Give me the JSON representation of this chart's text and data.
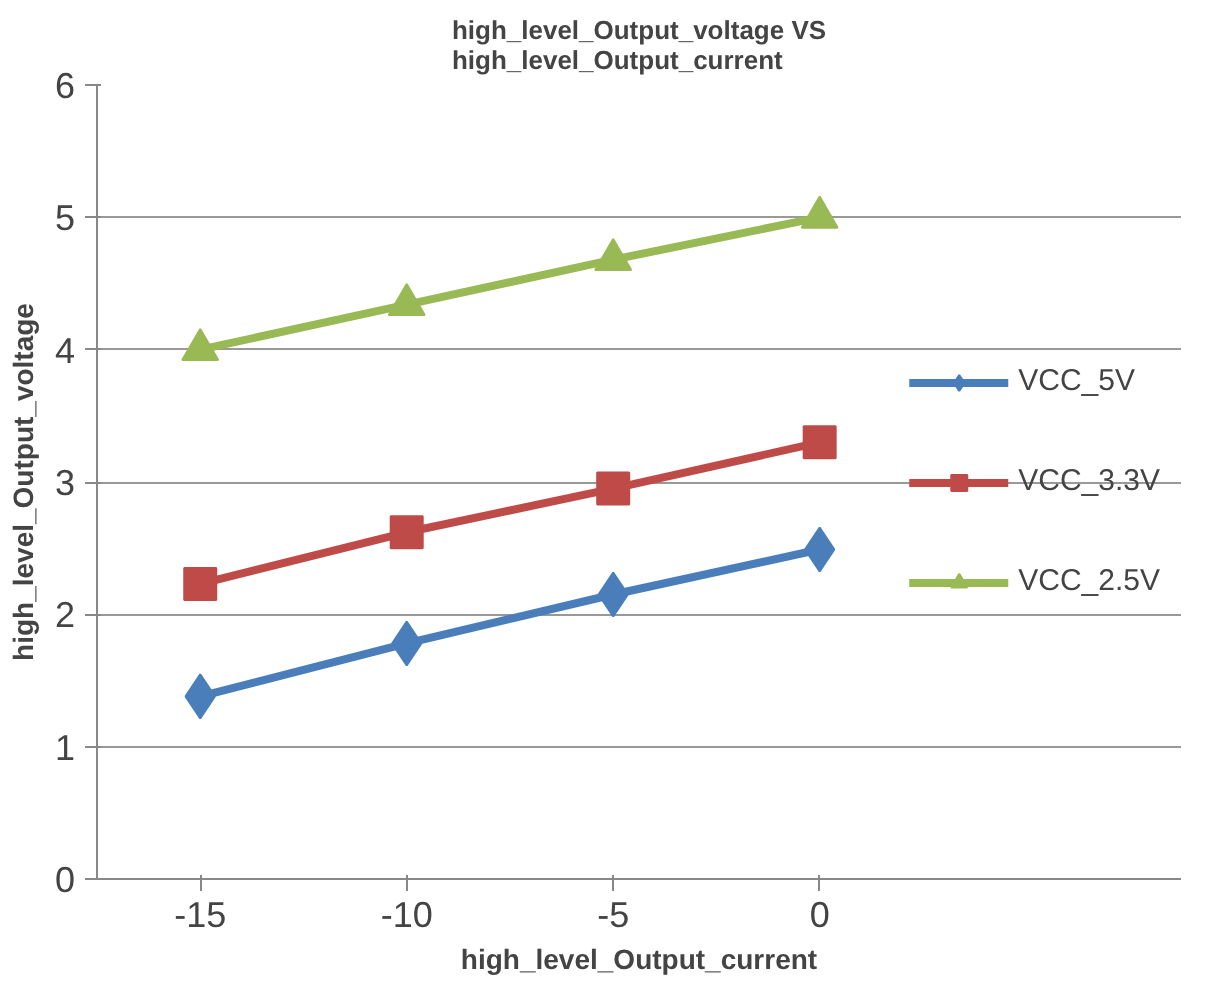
{
  "chart_data": {
    "type": "line",
    "title": "high_level_Output_voltage VS\nhigh_level_Output_current",
    "xlabel": "high_level_Output_current",
    "ylabel": "high_level_Output_voltage",
    "categories": [
      "-15",
      "-10",
      "-5",
      "0"
    ],
    "series": [
      {
        "name": "VCC_5V",
        "color": "#4a7ebb",
        "marker": "diamond",
        "values": [
          1.38,
          1.78,
          2.15,
          2.49
        ]
      },
      {
        "name": "VCC_3.3V",
        "color": "#be4b48",
        "marker": "square",
        "values": [
          2.23,
          2.62,
          2.95,
          3.3
        ]
      },
      {
        "name": "VCC_2.5V",
        "color": "#98b954",
        "marker": "triangle",
        "values": [
          4.0,
          4.34,
          4.68,
          5.0
        ]
      }
    ],
    "ylim": [
      0,
      6
    ],
    "yticks": [
      0,
      1,
      2,
      3,
      4,
      5,
      6
    ],
    "grid": "y",
    "legend": "right"
  }
}
